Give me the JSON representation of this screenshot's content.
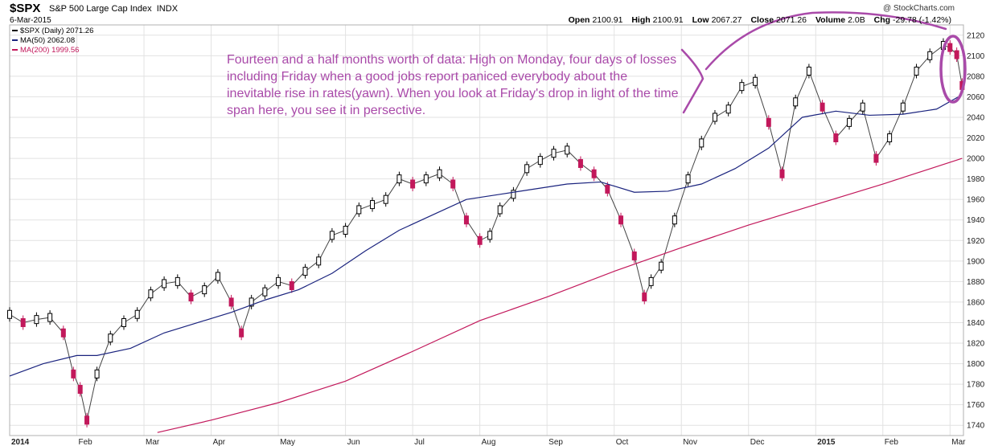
{
  "header": {
    "symbol": "$SPX",
    "name": "S&P 500 Large Cap Index",
    "exchange": "INDX",
    "date": "6-Mar-2015",
    "brand": "@ StockCharts.com",
    "quote": [
      {
        "label": "Open",
        "value": "2100.91"
      },
      {
        "label": "High",
        "value": "2100.91"
      },
      {
        "label": "Low",
        "value": "2067.27"
      },
      {
        "label": "Close",
        "value": "2071.26"
      },
      {
        "label": "Volume",
        "value": "2.0B"
      },
      {
        "label": "Chg",
        "value": "-29.78 (-1.42%)"
      }
    ]
  },
  "legend": [
    {
      "label": "$SPX (Daily) 2071.26",
      "color": "#000000"
    },
    {
      "label": "MA(50) 2062.08",
      "color": "#1a237e"
    },
    {
      "label": "MA(200) 1999.56",
      "color": "#c2185b"
    }
  ],
  "annotation": {
    "text": "Fourteen and a half months worth of data: High on Monday, four days of losses including Friday when a good jobs report paniced everybody about the inevitable rise in rates(yawn). When you look at Friday's drop in light of the time span here, you see it in persective.",
    "color": "#a94aa9"
  },
  "chart_data": {
    "type": "line",
    "y_ticks": [
      1740,
      1760,
      1780,
      1800,
      1820,
      1840,
      1860,
      1880,
      1900,
      1920,
      1940,
      1960,
      1980,
      2000,
      2020,
      2040,
      2060,
      2080,
      2100,
      2120
    ],
    "ylim": [
      1730,
      2130
    ],
    "x_labels": [
      {
        "label": "2014",
        "bold": true,
        "month": 0
      },
      {
        "label": "Feb",
        "bold": false,
        "month": 1
      },
      {
        "label": "Mar",
        "bold": false,
        "month": 2
      },
      {
        "label": "Apr",
        "bold": false,
        "month": 3
      },
      {
        "label": "May",
        "bold": false,
        "month": 4
      },
      {
        "label": "Jun",
        "bold": false,
        "month": 5
      },
      {
        "label": "Jul",
        "bold": false,
        "month": 6
      },
      {
        "label": "Aug",
        "bold": false,
        "month": 7
      },
      {
        "label": "Sep",
        "bold": false,
        "month": 8
      },
      {
        "label": "Oct",
        "bold": false,
        "month": 9
      },
      {
        "label": "Nov",
        "bold": false,
        "month": 10
      },
      {
        "label": "Dec",
        "bold": false,
        "month": 11
      },
      {
        "label": "2015",
        "bold": true,
        "month": 12
      },
      {
        "label": "Feb",
        "bold": false,
        "month": 13
      },
      {
        "label": "Mar",
        "bold": false,
        "month": 14
      }
    ],
    "x_range_months": [
      0,
      14.2
    ],
    "series": [
      {
        "name": "$SPX (Daily)",
        "color": "#000000",
        "down_color": "#c2185b",
        "x": [
          0.0,
          0.2,
          0.4,
          0.6,
          0.8,
          0.95,
          1.05,
          1.15,
          1.3,
          1.5,
          1.7,
          1.9,
          2.1,
          2.3,
          2.5,
          2.7,
          2.9,
          3.1,
          3.3,
          3.45,
          3.6,
          3.8,
          4.0,
          4.2,
          4.4,
          4.6,
          4.8,
          5.0,
          5.2,
          5.4,
          5.6,
          5.8,
          6.0,
          6.2,
          6.4,
          6.6,
          6.8,
          7.0,
          7.15,
          7.3,
          7.5,
          7.7,
          7.9,
          8.1,
          8.3,
          8.5,
          8.7,
          8.9,
          9.1,
          9.3,
          9.45,
          9.55,
          9.7,
          9.9,
          10.1,
          10.3,
          10.5,
          10.7,
          10.9,
          11.1,
          11.3,
          11.5,
          11.7,
          11.9,
          12.1,
          12.3,
          12.5,
          12.7,
          12.9,
          13.1,
          13.3,
          13.5,
          13.7,
          13.9,
          14.0,
          14.1,
          14.18
        ],
        "values": [
          1848,
          1840,
          1843,
          1845,
          1830,
          1790,
          1775,
          1745,
          1790,
          1825,
          1840,
          1848,
          1868,
          1878,
          1880,
          1865,
          1872,
          1885,
          1860,
          1830,
          1860,
          1870,
          1880,
          1876,
          1890,
          1900,
          1925,
          1930,
          1950,
          1955,
          1960,
          1980,
          1975,
          1980,
          1985,
          1975,
          1940,
          1920,
          1925,
          1950,
          1965,
          1990,
          1998,
          2005,
          2008,
          1995,
          1985,
          1970,
          1940,
          1905,
          1865,
          1880,
          1895,
          1940,
          1980,
          2015,
          2040,
          2048,
          2070,
          2075,
          2035,
          1985,
          2055,
          2085,
          2050,
          2020,
          2035,
          2050,
          2000,
          2020,
          2050,
          2085,
          2100,
          2110,
          2108,
          2101,
          2071
        ]
      },
      {
        "name": "MA(50)",
        "color": "#1a237e",
        "x": [
          0.0,
          0.5,
          1.0,
          1.3,
          1.8,
          2.3,
          2.8,
          3.3,
          3.8,
          4.3,
          4.8,
          5.3,
          5.8,
          6.3,
          6.8,
          7.3,
          7.8,
          8.3,
          8.8,
          9.3,
          9.8,
          10.3,
          10.8,
          11.3,
          11.8,
          12.3,
          12.8,
          13.3,
          13.8,
          14.18
        ],
        "values": [
          1788,
          1800,
          1808,
          1808,
          1815,
          1830,
          1840,
          1850,
          1862,
          1872,
          1888,
          1910,
          1930,
          1945,
          1960,
          1965,
          1970,
          1975,
          1977,
          1967,
          1968,
          1975,
          1990,
          2010,
          2040,
          2046,
          2042,
          2043,
          2048,
          2062
        ]
      },
      {
        "name": "MA(200)",
        "color": "#c2185b",
        "x": [
          2.2,
          3.0,
          4.0,
          5.0,
          6.0,
          7.0,
          8.0,
          9.0,
          10.0,
          11.0,
          12.0,
          13.0,
          14.18
        ],
        "values": [
          1733,
          1745,
          1762,
          1783,
          1812,
          1842,
          1865,
          1890,
          1913,
          1935,
          1955,
          1975,
          2000
        ]
      }
    ]
  }
}
